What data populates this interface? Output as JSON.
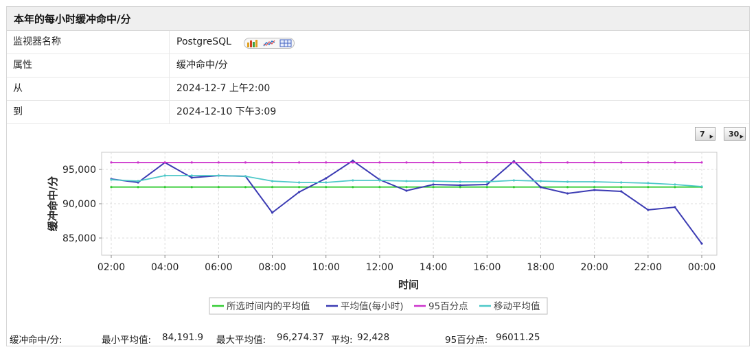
{
  "panel": {
    "title": "本年的每小时缓冲命中/分"
  },
  "info_rows": [
    {
      "label": "监视器名称",
      "value": "PostgreSQL"
    },
    {
      "label": "属性",
      "value": "缓冲命中/分"
    },
    {
      "label": "从",
      "value": "2024-12-7 上午2:00"
    },
    {
      "label": "到",
      "value": "2024-12-10 下午3:09"
    }
  ],
  "report_icons": [
    "bar-chart-icon",
    "line-chart-icon",
    "table-icon"
  ],
  "period_buttons": {
    "seven": "7",
    "thirty": "30"
  },
  "chart_data": {
    "type": "line",
    "title": "",
    "xlabel": "时间",
    "ylabel": "缓冲命中/分",
    "x_ticks": [
      "02:00",
      "04:00",
      "06:00",
      "08:00",
      "10:00",
      "12:00",
      "14:00",
      "16:00",
      "18:00",
      "20:00",
      "22:00",
      "00:00"
    ],
    "y_ticks": [
      "85,000",
      "90,000",
      "95,000"
    ],
    "ylim": [
      82500,
      97500
    ],
    "x": [
      "02:00",
      "03:00",
      "04:00",
      "05:00",
      "06:00",
      "07:00",
      "08:00",
      "09:00",
      "10:00",
      "11:00",
      "12:00",
      "13:00",
      "14:00",
      "15:00",
      "16:00",
      "17:00",
      "18:00",
      "19:00",
      "20:00",
      "21:00",
      "22:00",
      "23:00",
      "00:00"
    ],
    "series": [
      {
        "name": "所选时间内的平均值",
        "color": "#33cc33",
        "values": [
          92428,
          92428,
          92428,
          92428,
          92428,
          92428,
          92428,
          92428,
          92428,
          92428,
          92428,
          92428,
          92428,
          92428,
          92428,
          92428,
          92428,
          92428,
          92428,
          92428,
          92428,
          92428,
          92428
        ]
      },
      {
        "name": "平均值(每小时)",
        "color": "#3b3bb3",
        "values": [
          93600,
          93100,
          96000,
          93800,
          94100,
          94000,
          88700,
          91700,
          93700,
          96274,
          93500,
          91900,
          92800,
          92700,
          92800,
          96200,
          92400,
          91500,
          92000,
          91800,
          89100,
          89500,
          84192
        ]
      },
      {
        "name": "95百分点",
        "color": "#cc33cc",
        "values": [
          96011,
          96011,
          96011,
          96011,
          96011,
          96011,
          96011,
          96011,
          96011,
          96011,
          96011,
          96011,
          96011,
          96011,
          96011,
          96011,
          96011,
          96011,
          96011,
          96011,
          96011,
          96011,
          96011
        ]
      },
      {
        "name": "移动平均值",
        "color": "#4cc8c8",
        "values": [
          93500,
          93300,
          94100,
          94100,
          94100,
          94000,
          93300,
          93100,
          93100,
          93400,
          93400,
          93300,
          93300,
          93200,
          93200,
          93400,
          93300,
          93200,
          93200,
          93100,
          93000,
          92800,
          92500
        ]
      }
    ],
    "grid": true,
    "legend": "bottom"
  },
  "stats": {
    "label": "缓冲命中/分:",
    "min_label": "最小平均值:",
    "min_value": "84,191.9",
    "max_label": "最大平均值:",
    "max_value": "96,274.37",
    "avg_label": "平均:",
    "avg_value": "92,428",
    "p95_label": "95百分点:",
    "p95_value": "96011.25"
  }
}
